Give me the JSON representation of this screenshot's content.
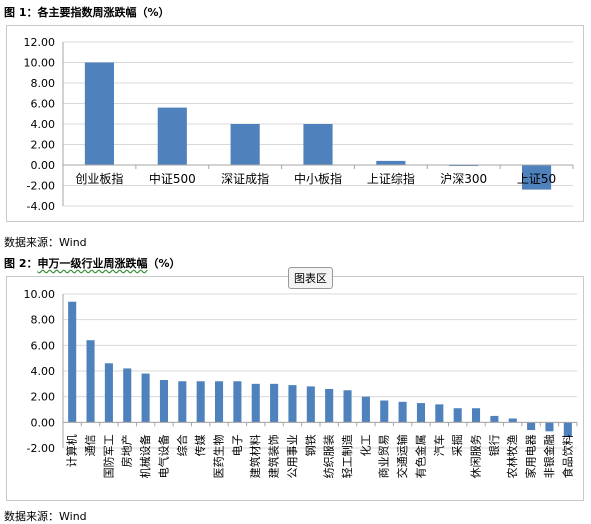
{
  "figure1": {
    "title": "图 1：各主要指数周涨跌幅（%）",
    "source": "数据来源：Wind"
  },
  "figure2": {
    "title_prefix": "图 2：",
    "title_main": "申万一级行业周涨跌幅",
    "title_suffix": "（%）",
    "source": "数据来源：Wind"
  },
  "tooltip": "图表区",
  "chart_data": [
    {
      "type": "bar",
      "bar_color": "#4f81bd",
      "categories": [
        "创业板指",
        "中证500",
        "深证成指",
        "中小板指",
        "上证综指",
        "沪深300",
        "上证50"
      ],
      "values": [
        10.0,
        5.6,
        4.0,
        4.0,
        0.4,
        -0.1,
        -2.4
      ],
      "ylim": [
        -4.0,
        12.0
      ],
      "ytick_step": 2.0,
      "grid": true,
      "xlabel": "",
      "ylabel": ""
    },
    {
      "type": "bar",
      "bar_color": "#4f81bd",
      "categories": [
        "计算机",
        "通信",
        "国防军工",
        "房地产",
        "机械设备",
        "电气设备",
        "综合",
        "传媒",
        "医药生物",
        "电子",
        "建筑材料",
        "建筑装饰",
        "公用事业",
        "钢铁",
        "纺织服装",
        "轻工制造",
        "化工",
        "商业贸易",
        "交通运输",
        "有色金属",
        "汽车",
        "采掘",
        "休闲服务",
        "银行",
        "农林牧渔",
        "家用电器",
        "非银金融",
        "食品饮料"
      ],
      "values": [
        9.4,
        6.4,
        4.6,
        4.2,
        3.8,
        3.3,
        3.2,
        3.2,
        3.2,
        3.2,
        3.0,
        3.0,
        2.9,
        2.8,
        2.6,
        2.5,
        2.0,
        1.7,
        1.6,
        1.5,
        1.4,
        1.1,
        1.1,
        0.5,
        0.3,
        -0.6,
        -0.7,
        -1.1
      ],
      "ylim": [
        -2.0,
        10.0
      ],
      "ytick_step": 2.0,
      "grid": true,
      "xlabel": "",
      "ylabel": ""
    }
  ]
}
